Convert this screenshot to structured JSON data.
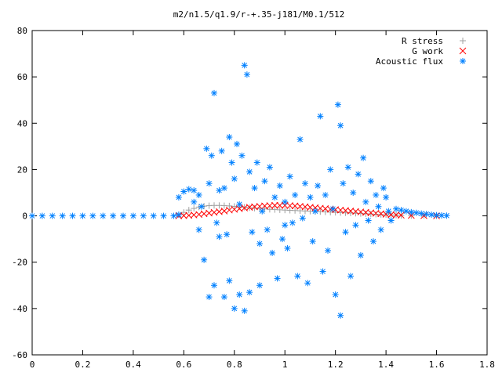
{
  "chart_data": {
    "type": "scatter",
    "title": "m2/n1.5/q1.9/r-+.35-j181/M0.1/512",
    "xlabel": "",
    "ylabel": "",
    "xlim": [
      0,
      1.8
    ],
    "ylim": [
      -60,
      80
    ],
    "x_ticks": [
      "0",
      "0.2",
      "0.4",
      "0.6",
      "0.8",
      "1",
      "1.2",
      "1.4",
      "1.6",
      "1.8"
    ],
    "y_ticks": [
      "-60",
      "-40",
      "-20",
      "0",
      "20",
      "40",
      "60",
      "80"
    ],
    "grid": false,
    "legend_position": "top-right",
    "series": [
      {
        "name": "R stress",
        "color": "#a0a0a0",
        "marker": "plus",
        "points": [
          [
            0.58,
            0.5
          ],
          [
            0.6,
            1.5
          ],
          [
            0.62,
            2.5
          ],
          [
            0.64,
            3.2
          ],
          [
            0.66,
            3.8
          ],
          [
            0.68,
            4.2
          ],
          [
            0.7,
            4.4
          ],
          [
            0.72,
            4.5
          ],
          [
            0.74,
            4.5
          ],
          [
            0.76,
            4.4
          ],
          [
            0.78,
            4.3
          ],
          [
            0.8,
            4.1
          ],
          [
            0.82,
            3.9
          ],
          [
            0.84,
            3.7
          ],
          [
            0.86,
            3.5
          ],
          [
            0.88,
            3.3
          ],
          [
            0.9,
            3.1
          ],
          [
            0.92,
            3.0
          ],
          [
            0.94,
            2.8
          ],
          [
            0.96,
            2.7
          ],
          [
            0.98,
            2.6
          ],
          [
            1.0,
            2.5
          ],
          [
            1.02,
            2.4
          ],
          [
            1.04,
            2.3
          ],
          [
            1.06,
            2.2
          ],
          [
            1.08,
            2.1
          ],
          [
            1.1,
            2.0
          ],
          [
            1.12,
            1.9
          ],
          [
            1.14,
            1.8
          ],
          [
            1.16,
            1.7
          ],
          [
            1.18,
            1.6
          ],
          [
            1.2,
            1.5
          ],
          [
            1.22,
            1.4
          ],
          [
            1.24,
            1.3
          ],
          [
            1.26,
            1.2
          ],
          [
            1.28,
            1.1
          ],
          [
            1.3,
            1.0
          ],
          [
            1.32,
            0.9
          ],
          [
            1.34,
            0.8
          ],
          [
            1.36,
            0.7
          ],
          [
            1.38,
            0.6
          ],
          [
            1.4,
            0.5
          ],
          [
            1.42,
            0.4
          ],
          [
            1.44,
            0.3
          ],
          [
            1.46,
            0.2
          ],
          [
            1.5,
            0.1
          ],
          [
            1.55,
            0.1
          ],
          [
            1.6,
            0.0
          ]
        ]
      },
      {
        "name": "G work",
        "color": "#ff0000",
        "marker": "x",
        "points": [
          [
            0.58,
            0.0
          ],
          [
            0.6,
            0.1
          ],
          [
            0.62,
            0.2
          ],
          [
            0.64,
            0.4
          ],
          [
            0.66,
            0.6
          ],
          [
            0.68,
            0.9
          ],
          [
            0.7,
            1.2
          ],
          [
            0.72,
            1.5
          ],
          [
            0.74,
            1.8
          ],
          [
            0.76,
            2.1
          ],
          [
            0.78,
            2.5
          ],
          [
            0.8,
            2.8
          ],
          [
            0.82,
            3.1
          ],
          [
            0.84,
            3.4
          ],
          [
            0.86,
            3.7
          ],
          [
            0.88,
            3.9
          ],
          [
            0.9,
            4.1
          ],
          [
            0.92,
            4.3
          ],
          [
            0.94,
            4.4
          ],
          [
            0.96,
            4.5
          ],
          [
            0.98,
            4.5
          ],
          [
            1.0,
            4.5
          ],
          [
            1.02,
            4.4
          ],
          [
            1.04,
            4.3
          ],
          [
            1.06,
            4.1
          ],
          [
            1.08,
            3.9
          ],
          [
            1.1,
            3.7
          ],
          [
            1.12,
            3.5
          ],
          [
            1.14,
            3.3
          ],
          [
            1.16,
            3.1
          ],
          [
            1.18,
            2.9
          ],
          [
            1.2,
            2.7
          ],
          [
            1.22,
            2.5
          ],
          [
            1.24,
            2.3
          ],
          [
            1.26,
            2.1
          ],
          [
            1.28,
            1.9
          ],
          [
            1.3,
            1.7
          ],
          [
            1.32,
            1.5
          ],
          [
            1.34,
            1.3
          ],
          [
            1.36,
            1.1
          ],
          [
            1.38,
            0.9
          ],
          [
            1.4,
            0.7
          ],
          [
            1.42,
            0.5
          ],
          [
            1.44,
            0.4
          ],
          [
            1.46,
            0.3
          ],
          [
            1.5,
            0.2
          ],
          [
            1.55,
            0.1
          ],
          [
            1.6,
            0.0
          ]
        ]
      },
      {
        "name": "Acoustic flux",
        "color": "#0080ff",
        "marker": "star",
        "points": [
          [
            0.0,
            0.0
          ],
          [
            0.04,
            0.0
          ],
          [
            0.08,
            0.0
          ],
          [
            0.12,
            0.0
          ],
          [
            0.16,
            0.0
          ],
          [
            0.2,
            0.0
          ],
          [
            0.24,
            0.0
          ],
          [
            0.28,
            0.0
          ],
          [
            0.32,
            0.0
          ],
          [
            0.36,
            0.0
          ],
          [
            0.4,
            0.0
          ],
          [
            0.44,
            0.0
          ],
          [
            0.48,
            0.0
          ],
          [
            0.52,
            0.0
          ],
          [
            0.56,
            0.0
          ],
          [
            0.58,
            0.5
          ],
          [
            0.58,
            8.0
          ],
          [
            0.6,
            10.5
          ],
          [
            0.62,
            11.5
          ],
          [
            0.64,
            11.0
          ],
          [
            0.66,
            9.0
          ],
          [
            0.64,
            6.0
          ],
          [
            0.66,
            -6.0
          ],
          [
            0.67,
            4.0
          ],
          [
            0.68,
            -19.0
          ],
          [
            0.69,
            29.0
          ],
          [
            0.7,
            14.0
          ],
          [
            0.7,
            -35.0
          ],
          [
            0.71,
            26.0
          ],
          [
            0.72,
            53.0
          ],
          [
            0.72,
            -30.0
          ],
          [
            0.73,
            -3.0
          ],
          [
            0.74,
            11.0
          ],
          [
            0.74,
            -9.0
          ],
          [
            0.75,
            28.0
          ],
          [
            0.76,
            -35.0
          ],
          [
            0.76,
            12.0
          ],
          [
            0.77,
            -8.0
          ],
          [
            0.78,
            34.0
          ],
          [
            0.78,
            -28.0
          ],
          [
            0.79,
            23.0
          ],
          [
            0.8,
            -40.0
          ],
          [
            0.8,
            16.0
          ],
          [
            0.81,
            31.0
          ],
          [
            0.82,
            -34.0
          ],
          [
            0.82,
            5.0
          ],
          [
            0.83,
            26.0
          ],
          [
            0.84,
            65.0
          ],
          [
            0.84,
            -41.0
          ],
          [
            0.85,
            61.0
          ],
          [
            0.86,
            19.0
          ],
          [
            0.86,
            -33.0
          ],
          [
            0.87,
            -7.0
          ],
          [
            0.88,
            12.0
          ],
          [
            0.89,
            23.0
          ],
          [
            0.9,
            -30.0
          ],
          [
            0.9,
            -12.0
          ],
          [
            0.91,
            2.0
          ],
          [
            0.92,
            15.0
          ],
          [
            0.93,
            -6.0
          ],
          [
            0.94,
            21.0
          ],
          [
            0.95,
            -16.0
          ],
          [
            0.96,
            8.0
          ],
          [
            0.97,
            -27.0
          ],
          [
            0.98,
            13.0
          ],
          [
            0.99,
            -10.0
          ],
          [
            1.0,
            6.0
          ],
          [
            1.0,
            -4.0
          ],
          [
            1.01,
            -14.0
          ],
          [
            1.02,
            17.0
          ],
          [
            1.03,
            -3.0
          ],
          [
            1.04,
            9.0
          ],
          [
            1.05,
            -26.0
          ],
          [
            1.06,
            33.0
          ],
          [
            1.07,
            -1.0
          ],
          [
            1.08,
            14.0
          ],
          [
            1.09,
            -29.0
          ],
          [
            1.1,
            8.0
          ],
          [
            1.11,
            -11.0
          ],
          [
            1.12,
            2.0
          ],
          [
            1.13,
            13.0
          ],
          [
            1.14,
            43.0
          ],
          [
            1.15,
            -24.0
          ],
          [
            1.16,
            9.0
          ],
          [
            1.17,
            -15.0
          ],
          [
            1.18,
            20.0
          ],
          [
            1.19,
            3.0
          ],
          [
            1.2,
            -34.0
          ],
          [
            1.21,
            48.0
          ],
          [
            1.22,
            39.0
          ],
          [
            1.22,
            -43.0
          ],
          [
            1.23,
            14.0
          ],
          [
            1.24,
            -7.0
          ],
          [
            1.25,
            21.0
          ],
          [
            1.26,
            -26.0
          ],
          [
            1.27,
            10.0
          ],
          [
            1.28,
            -4.0
          ],
          [
            1.29,
            18.0
          ],
          [
            1.3,
            -17.0
          ],
          [
            1.31,
            25.0
          ],
          [
            1.32,
            6.0
          ],
          [
            1.33,
            -2.0
          ],
          [
            1.34,
            15.0
          ],
          [
            1.35,
            -11.0
          ],
          [
            1.36,
            9.0
          ],
          [
            1.37,
            4.0
          ],
          [
            1.38,
            -6.0
          ],
          [
            1.39,
            12.0
          ],
          [
            1.4,
            8.0
          ],
          [
            1.41,
            2.0
          ],
          [
            1.42,
            -2.0
          ],
          [
            1.44,
            3.0
          ],
          [
            1.46,
            2.5
          ],
          [
            1.48,
            2.0
          ],
          [
            1.5,
            1.6
          ],
          [
            1.52,
            1.3
          ],
          [
            1.54,
            1.0
          ],
          [
            1.56,
            0.8
          ],
          [
            1.58,
            0.5
          ],
          [
            1.6,
            0.3
          ],
          [
            1.62,
            0.2
          ],
          [
            1.64,
            0.1
          ]
        ]
      }
    ]
  }
}
